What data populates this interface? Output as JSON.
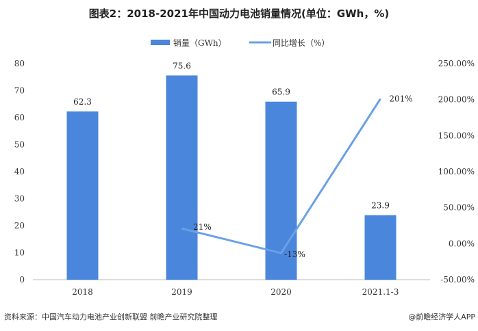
{
  "chart_data": {
    "type": "bar+line",
    "title": "图表2：2018-2021年中国动力电池销量情况(单位：GWh，%)",
    "categories": [
      "2018",
      "2019",
      "2020",
      "2021.1-3"
    ],
    "series": [
      {
        "name": "销量（GWh）",
        "type": "bar",
        "axis": "left",
        "values": [
          62.3,
          75.6,
          65.9,
          23.9
        ],
        "labels": [
          "62.3",
          "75.6",
          "65.9",
          "23.9"
        ],
        "color": "#4a86dc"
      },
      {
        "name": "同比增长（%）",
        "type": "line",
        "axis": "right",
        "values": [
          null,
          21,
          -13,
          201
        ],
        "labels": [
          "",
          "21%",
          "-13%",
          "201%"
        ],
        "color": "#6aa0e6"
      }
    ],
    "left_axis": {
      "ylim": [
        0,
        80
      ],
      "ticks": [
        "0",
        "10",
        "20",
        "30",
        "40",
        "50",
        "60",
        "70",
        "80"
      ]
    },
    "right_axis": {
      "ylim": [
        -50,
        250
      ],
      "ticks": [
        "-50.00%",
        "0.00%",
        "50.00%",
        "100.00%",
        "150.00%",
        "200.00%",
        "250.00%"
      ]
    },
    "grid": false,
    "legend_position": "top"
  },
  "footer": {
    "source": "资料来源：中国汽车动力电池产业创新联盟 前瞻产业研究院整理",
    "brand": "@前瞻经济学人APP"
  }
}
